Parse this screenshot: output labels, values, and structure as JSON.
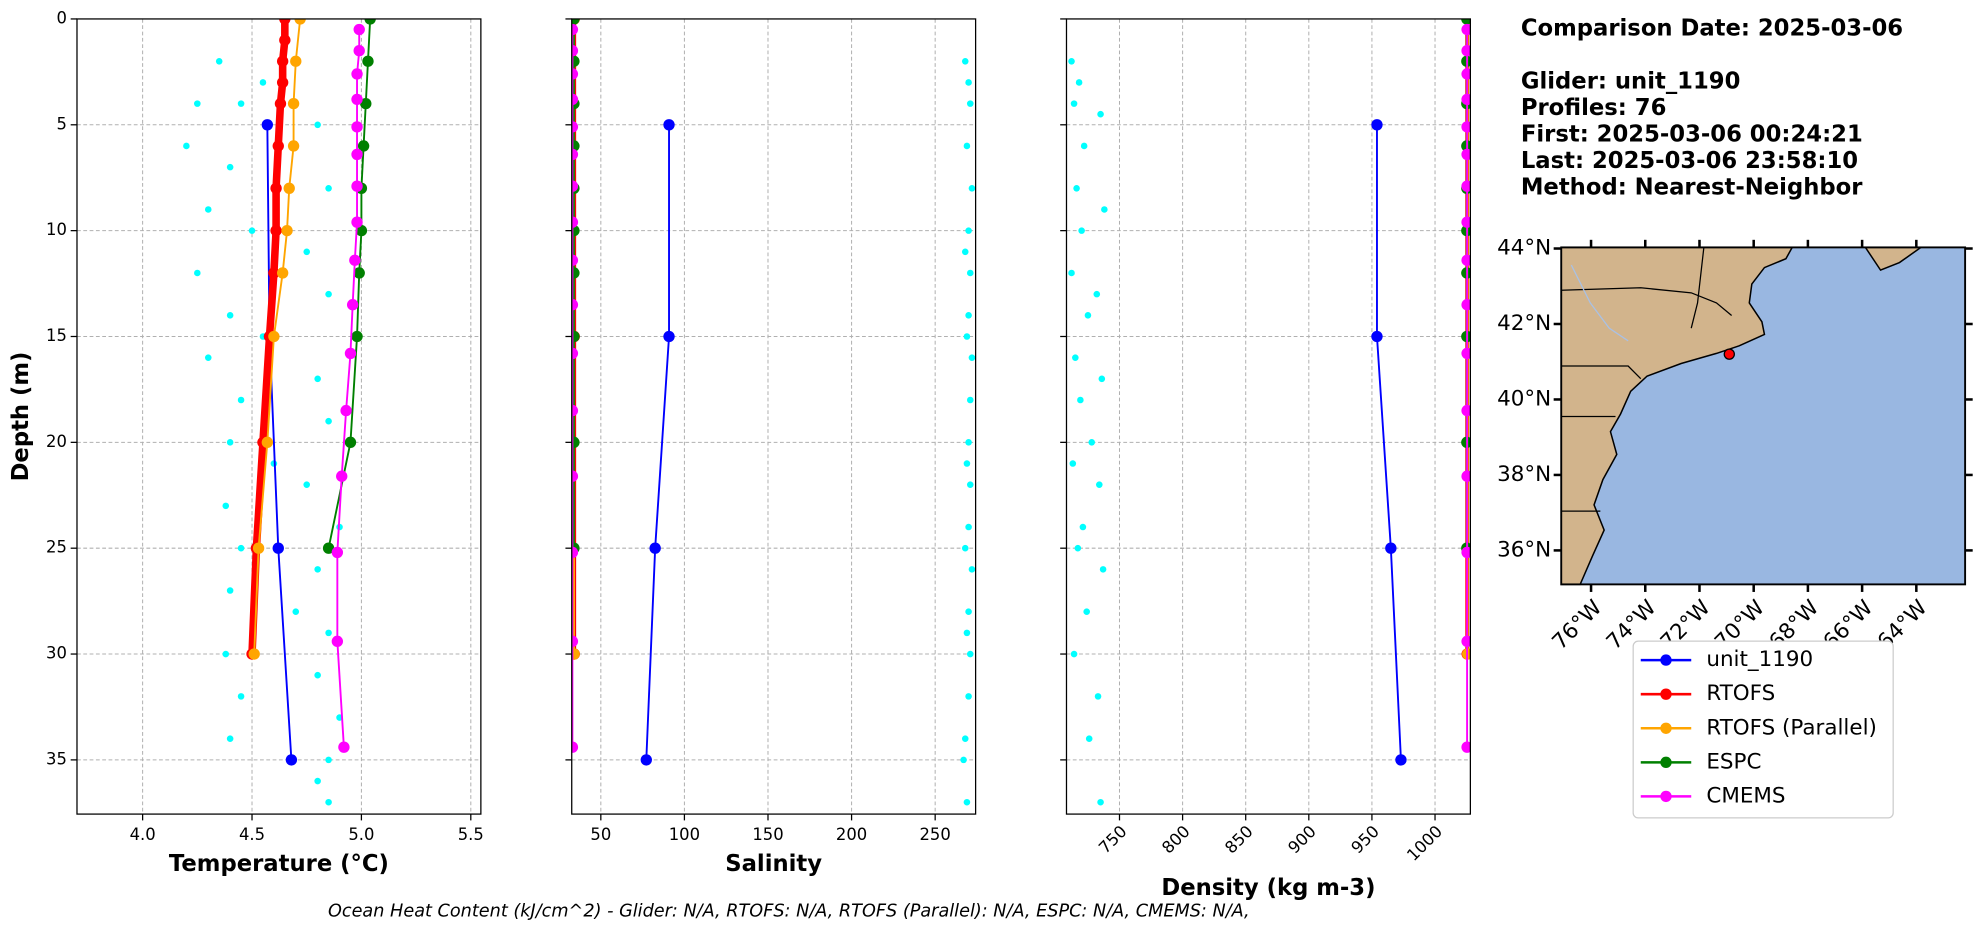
{
  "chart_data": [
    {
      "type": "line",
      "xlabel": "Temperature (°C)",
      "ylabel": "Depth (m)",
      "xlim": [
        3.7,
        5.546
      ],
      "xticks": [
        {
          "value": 4,
          "label": "4.0"
        },
        4.5,
        {
          "value": 5,
          "label": "5.0"
        },
        5.5
      ],
      "ylim": [
        37.56,
        0
      ],
      "yticks": [
        0,
        5,
        10,
        15,
        20,
        25,
        30,
        35
      ],
      "grid": true,
      "scatter": {
        "color": "#00ffff",
        "values": [
          4.35,
          4.55,
          4.25,
          4.45,
          4.8,
          4.2,
          4.4,
          4.85,
          4.3,
          4.5,
          4.75,
          4.25,
          4.85,
          4.4,
          4.55,
          4.3,
          4.8,
          4.45,
          4.85,
          4.4,
          4.6,
          4.75,
          4.38,
          4.9,
          4.45,
          4.8,
          4.4,
          4.7,
          4.85,
          4.38,
          4.8,
          4.45,
          4.9,
          4.4,
          4.85,
          4.8,
          4.85
        ],
        "depths": [
          2,
          3,
          4,
          4,
          5,
          6,
          7,
          8,
          9,
          10,
          11,
          12,
          13,
          14,
          15,
          16,
          17,
          18,
          19,
          20,
          21,
          22,
          23,
          24,
          25,
          26,
          27,
          28,
          29,
          30,
          31,
          32,
          33,
          34,
          35,
          36,
          37
        ]
      },
      "series": [
        {
          "color": "#0000ff",
          "linewidth": 1.5,
          "values": [
            4.57,
            4.58,
            4.62,
            4.68
          ],
          "depths": [
            5,
            15,
            25,
            35
          ]
        },
        {
          "color": "#ff0000",
          "linewidth": 6,
          "values": [
            4.65,
            4.65,
            4.64,
            4.64,
            4.63,
            4.62,
            4.61,
            4.61,
            4.6,
            4.58,
            4.55,
            4.52,
            4.5
          ],
          "depths": [
            0,
            1,
            2,
            3,
            4,
            6,
            8,
            10,
            12,
            15,
            20,
            25,
            30
          ]
        },
        {
          "color": "#ffa500",
          "linewidth": 1.5,
          "values": [
            4.72,
            4.7,
            4.69,
            4.69,
            4.67,
            4.66,
            4.64,
            4.6,
            4.57,
            4.53,
            4.51
          ],
          "depths": [
            0,
            2,
            4,
            6,
            8,
            10,
            12,
            15,
            20,
            25,
            30
          ]
        },
        {
          "color": "#008000",
          "linewidth": 1.5,
          "values": [
            5.04,
            5.03,
            5.02,
            5.01,
            5.0,
            5.0,
            4.99,
            4.98,
            4.95,
            4.85
          ],
          "depths": [
            0,
            2,
            4,
            6,
            8,
            10,
            12,
            15,
            20,
            25
          ]
        },
        {
          "color": "#ff00ff",
          "linewidth": 1.5,
          "values": [
            4.99,
            4.99,
            4.98,
            4.98,
            4.98,
            4.98,
            4.98,
            4.98,
            4.97,
            4.96,
            4.95,
            4.93,
            4.91,
            4.89,
            4.89,
            4.92
          ],
          "depths": [
            0.5,
            1.5,
            2.6,
            3.8,
            5.1,
            6.4,
            7.9,
            9.6,
            11.4,
            13.5,
            15.8,
            18.5,
            21.6,
            25.2,
            29.4,
            34.4
          ]
        }
      ]
    },
    {
      "type": "line",
      "xlabel": "Salinity",
      "xlim": [
        32.6,
        274.2
      ],
      "xticks": [
        50,
        100,
        150,
        200,
        250
      ],
      "grid": true,
      "scatter": {
        "color": "#00ffff",
        "values": [
          268,
          270,
          271,
          269,
          272,
          270,
          268,
          271,
          270,
          269,
          272,
          271,
          270,
          269,
          271,
          270,
          268,
          272,
          270,
          269,
          271,
          270,
          268,
          267,
          269
        ],
        "depths": [
          2,
          3,
          4,
          6,
          8,
          10,
          11,
          12,
          14,
          15,
          16,
          18,
          20,
          21,
          22,
          24,
          25,
          26,
          28,
          29,
          30,
          32,
          34,
          35,
          37
        ]
      },
      "series": [
        {
          "color": "#0000ff",
          "linewidth": 1.5,
          "values": [
            90.8,
            90.8,
            82.5,
            77.2
          ],
          "depths": [
            5,
            15,
            25,
            35
          ]
        },
        {
          "color": "#ff0000",
          "linewidth": 3,
          "values": [
            34.1,
            34.1,
            34.1
          ],
          "depths": [
            0,
            15,
            30
          ]
        },
        {
          "color": "#ffa500",
          "linewidth": 1.5,
          "values": [
            34.0,
            34.0
          ],
          "depths": [
            0,
            30
          ]
        },
        {
          "color": "#008000",
          "linewidth": 1.5,
          "values": [
            33.9,
            33.9,
            33.9,
            33.9,
            33.9,
            33.9,
            33.9,
            33.9,
            33.9,
            33.9
          ],
          "depths": [
            0,
            2,
            4,
            6,
            8,
            10,
            12,
            15,
            20,
            25
          ]
        },
        {
          "color": "#ff00ff",
          "linewidth": 1.5,
          "values": [
            33.0,
            33.0,
            33.0,
            33.0,
            33.0,
            33.0,
            33.0,
            33.0,
            33.0,
            33.0,
            33.0,
            33.0,
            33.0,
            33.0,
            33.0,
            33.0
          ],
          "depths": [
            0.5,
            1.5,
            2.6,
            3.8,
            5.1,
            6.4,
            7.9,
            9.6,
            11.4,
            13.5,
            15.8,
            18.5,
            21.6,
            25.2,
            29.4,
            34.4
          ]
        }
      ]
    },
    {
      "type": "line",
      "xlabel": "Density (kg m-3)",
      "xtick_rotation": -45,
      "xlim": [
        708,
        1028
      ],
      "xticks": [
        750,
        800,
        850,
        900,
        950,
        1000
      ],
      "grid": true,
      "scatter": {
        "color": "#00ffff",
        "values": [
          712,
          718,
          714,
          735,
          722,
          716,
          738,
          720,
          712,
          732,
          725,
          715,
          736,
          719,
          728,
          713,
          734,
          721,
          717,
          737,
          724,
          714,
          733,
          726,
          735
        ],
        "depths": [
          2,
          3,
          4,
          4.5,
          6,
          8,
          9,
          10,
          12,
          13,
          14,
          16,
          17,
          18,
          20,
          21,
          22,
          24,
          25,
          26,
          28,
          30,
          32,
          34,
          37
        ]
      },
      "series": [
        {
          "color": "#0000ff",
          "linewidth": 1.5,
          "values": [
            954,
            954,
            965,
            973
          ],
          "depths": [
            5,
            15,
            25,
            35
          ]
        },
        {
          "color": "#ff0000",
          "linewidth": 3,
          "values": [
            1025.5,
            1025.5,
            1025.5
          ],
          "depths": [
            0,
            15,
            30
          ]
        },
        {
          "color": "#ffa500",
          "linewidth": 1.5,
          "values": [
            1025.9,
            1025.9
          ],
          "depths": [
            0,
            30
          ]
        },
        {
          "color": "#008000",
          "linewidth": 1.5,
          "values": [
            1025.2,
            1025.2,
            1025.2,
            1025.2,
            1025.2,
            1025.2,
            1025.2,
            1025.2,
            1025.2,
            1025.2
          ],
          "depths": [
            0,
            2,
            4,
            6,
            8,
            10,
            12,
            15,
            20,
            25
          ]
        },
        {
          "color": "#ff00ff",
          "linewidth": 1.5,
          "values": [
            1025.4,
            1025.4,
            1025.4,
            1025.4,
            1025.4,
            1025.4,
            1025.4,
            1025.4,
            1025.4,
            1025.4,
            1025.4,
            1025.4,
            1025.4,
            1025.4,
            1025.4,
            1025.4
          ],
          "depths": [
            0.5,
            1.5,
            2.6,
            3.8,
            5.1,
            6.4,
            7.9,
            9.6,
            11.4,
            13.5,
            15.8,
            18.5,
            21.6,
            25.2,
            29.4,
            34.4
          ]
        }
      ]
    }
  ],
  "legend": [
    {
      "name": "unit_1190",
      "color": "#0000ff"
    },
    {
      "name": "RTOFS",
      "color": "#ff0000"
    },
    {
      "name": "RTOFS (Parallel)",
      "color": "#ffa500"
    },
    {
      "name": "ESPC",
      "color": "#008000"
    },
    {
      "name": "CMEMS",
      "color": "#ff00ff"
    }
  ],
  "info": {
    "comparison_date": "Comparison Date: 2025-03-06",
    "glider": "Glider: unit_1190",
    "profiles": "Profiles: 76",
    "first": "First: 2025-03-06 00:24:21",
    "last": "Last: 2025-03-06 23:58:10",
    "method": "Method: Nearest-Neighbor"
  },
  "map": {
    "lon_lim": [
      -77.1,
      -62.2
    ],
    "lat_lim": [
      35.1,
      44.03
    ],
    "lat_ticks": [
      {
        "value": 36,
        "label": "36°N"
      },
      {
        "value": 38,
        "label": "38°N"
      },
      {
        "value": 40,
        "label": "40°N"
      },
      {
        "value": 42,
        "label": "42°N"
      },
      {
        "value": 44,
        "label": "44°N"
      }
    ],
    "lon_ticks": [
      {
        "value": -76,
        "label": "76°W"
      },
      {
        "value": -74,
        "label": "74°W"
      },
      {
        "value": -72,
        "label": "72°W"
      },
      {
        "value": -70,
        "label": "70°W"
      },
      {
        "value": -68,
        "label": "68°W"
      },
      {
        "value": -66,
        "label": "66°W"
      },
      {
        "value": -64,
        "label": "64°W"
      }
    ],
    "glider_lon": -70.9,
    "glider_lat": 41.2
  },
  "footer": "Ocean Heat Content (kJ/cm^2) - Glider: N/A,  RTOFS: N/A,  RTOFS (Parallel): N/A,  ESPC: N/A,  CMEMS: N/A,"
}
